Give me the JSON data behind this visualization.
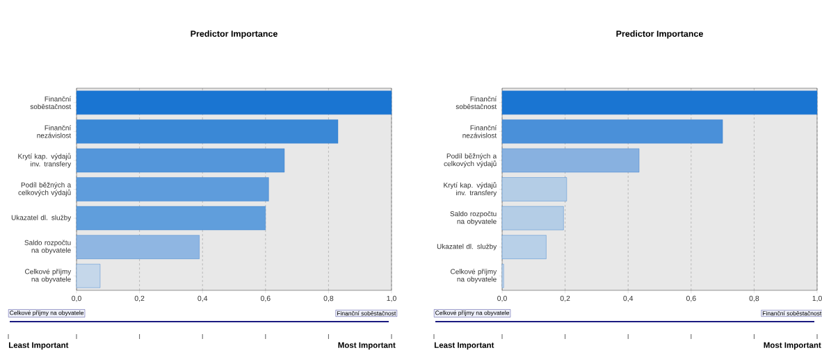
{
  "chart_data": [
    {
      "type": "bar",
      "orientation": "horizontal",
      "title": "Predictor Importance",
      "categories": [
        "Finanční soběstačnost",
        "Finanční nezávislost",
        "Krytí kap. výdajů inv. transfery",
        "Podíl běžných a celkových výdajů",
        "Ukazatel dl. služby",
        "Saldo rozpočtu na obyvatele",
        "Celkové příjmy na obyvatele"
      ],
      "values": [
        1.0,
        0.83,
        0.66,
        0.61,
        0.6,
        0.39,
        0.075
      ],
      "colors": [
        "#1a75d2",
        "#3a88d6",
        "#5496da",
        "#5e9cdc",
        "#609edc",
        "#8fb6e2",
        "#c5d7ea"
      ],
      "xlim": [
        0,
        1
      ],
      "xticks": [
        {
          "value": 0,
          "label": "0,0"
        },
        {
          "value": 0.2,
          "label": "0,2"
        },
        {
          "value": 0.4,
          "label": "0,4"
        },
        {
          "value": 0.6,
          "label": "0,6"
        },
        {
          "value": 0.8,
          "label": "0,8"
        },
        {
          "value": 1,
          "label": "1,0"
        }
      ],
      "grid": "x",
      "annotations": [
        "Celkové příjmy na obyvatele",
        "Finanční soběstačnost",
        "Least Important",
        "Most Important"
      ]
    },
    {
      "type": "bar",
      "orientation": "horizontal",
      "title": "Predictor Importance",
      "categories": [
        "Finanční soběstačnost",
        "Finanční nezávislost",
        "Podíl běžných a celkových výdajů",
        "Krytí kap. výdajů inv. transfery",
        "Saldo rozpočtu na obyvatele",
        "Ukazatel dl. služby",
        "Celkové příjmy na obyvatele"
      ],
      "values": [
        1.0,
        0.7,
        0.435,
        0.205,
        0.195,
        0.14,
        0.005
      ],
      "colors": [
        "#1a75d2",
        "#4a90d9",
        "#88b1e0",
        "#b4cde6",
        "#b4cde6",
        "#b8d0e8",
        "#c5d7ea"
      ],
      "xlim": [
        0,
        1
      ],
      "xticks": [
        {
          "value": 0,
          "label": "0,0"
        },
        {
          "value": 0.2,
          "label": "0,2"
        },
        {
          "value": 0.4,
          "label": "0,4"
        },
        {
          "value": 0.6,
          "label": "0,6"
        },
        {
          "value": 0.8,
          "label": "0,8"
        },
        {
          "value": 1,
          "label": "1,0"
        }
      ],
      "grid": "x",
      "annotations": [
        "Celkové příjmy na obyvatele",
        "Finanční soběstačnost",
        "Least Important",
        "Most Important"
      ]
    }
  ]
}
